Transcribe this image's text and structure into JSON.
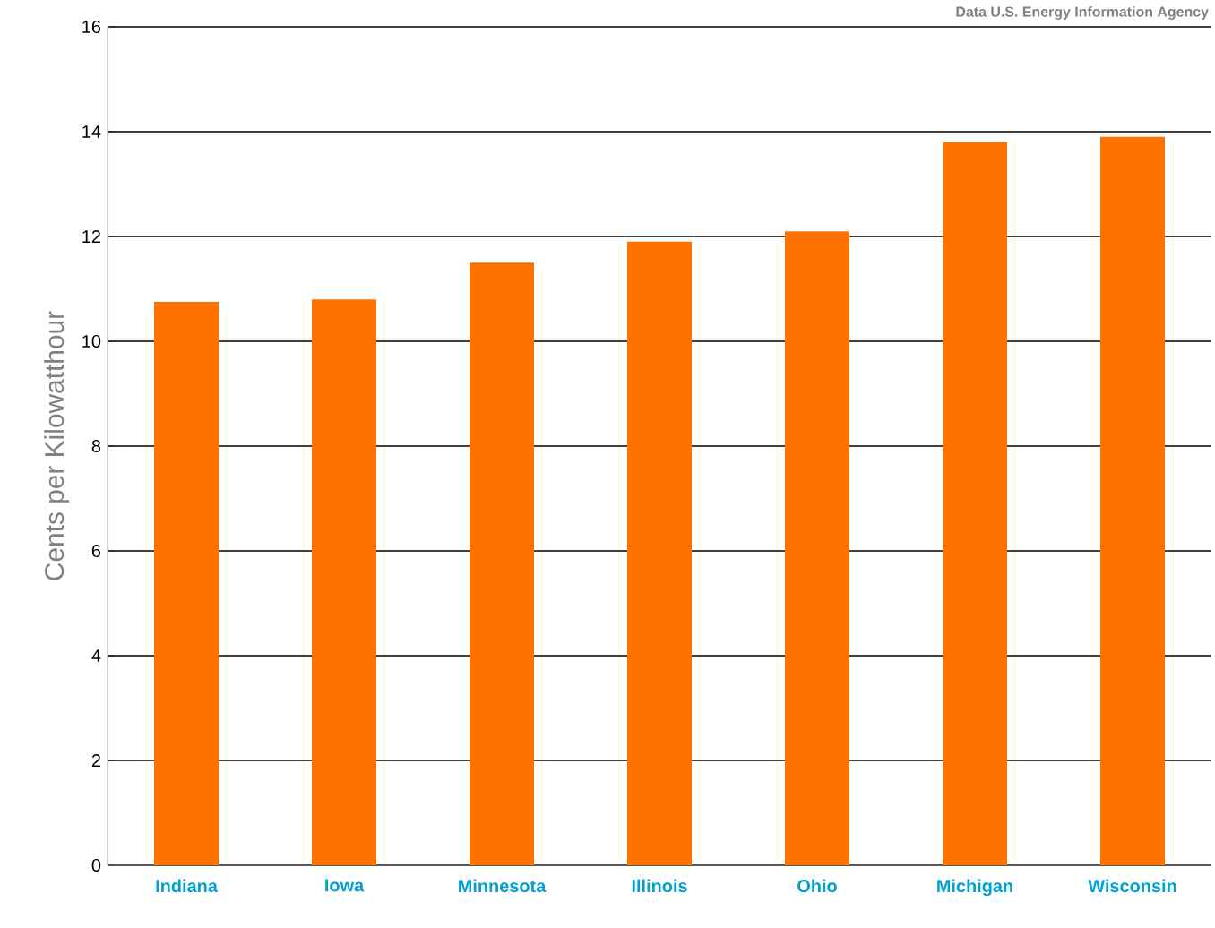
{
  "chart_data": {
    "type": "bar",
    "ylabel": "Cents per Kilowatthour",
    "annotations": [
      "Data U.S. Energy Information Agency"
    ],
    "categories": [
      "Indiana",
      "Iowa",
      "Minnesota",
      "Illinois",
      "Ohio",
      "Michigan",
      "Wisconsin"
    ],
    "values": [
      10.75,
      10.8,
      11.5,
      11.9,
      12.1,
      13.8,
      13.9
    ],
    "color": "#ff7200",
    "ylim": [
      0,
      16
    ],
    "yticks": [
      0,
      2,
      4,
      6,
      8,
      10,
      12,
      14,
      16
    ],
    "grid": "y"
  }
}
